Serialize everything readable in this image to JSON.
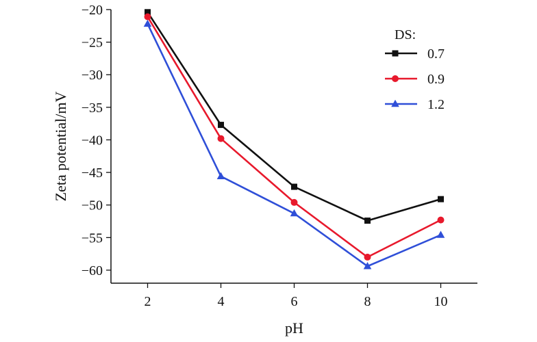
{
  "chart_data": {
    "type": "line",
    "title": "",
    "xlabel": "pH",
    "ylabel": "Zeta potential/mV",
    "x": [
      2,
      4,
      6,
      8,
      10
    ],
    "xlim": [
      1,
      11
    ],
    "ylim": [
      -62,
      -20
    ],
    "xticks": [
      2,
      4,
      6,
      8,
      10
    ],
    "yticks": [
      -20,
      -25,
      -30,
      -35,
      -40,
      -45,
      -50,
      -55,
      -60
    ],
    "grid": false,
    "legend": {
      "title": "DS:",
      "placement": "top-right"
    },
    "series": [
      {
        "name": "0.7",
        "color": "#111111",
        "marker": "square",
        "values": [
          -20.4,
          -37.7,
          -47.2,
          -52.4,
          -49.1
        ]
      },
      {
        "name": "0.9",
        "color": "#e8192c",
        "marker": "circle",
        "values": [
          -21.1,
          -39.8,
          -49.6,
          -58.0,
          -52.3
        ]
      },
      {
        "name": "1.2",
        "color": "#2f4fd8",
        "marker": "triangle",
        "values": [
          -22.2,
          -45.6,
          -51.3,
          -59.4,
          -54.6
        ]
      }
    ]
  }
}
